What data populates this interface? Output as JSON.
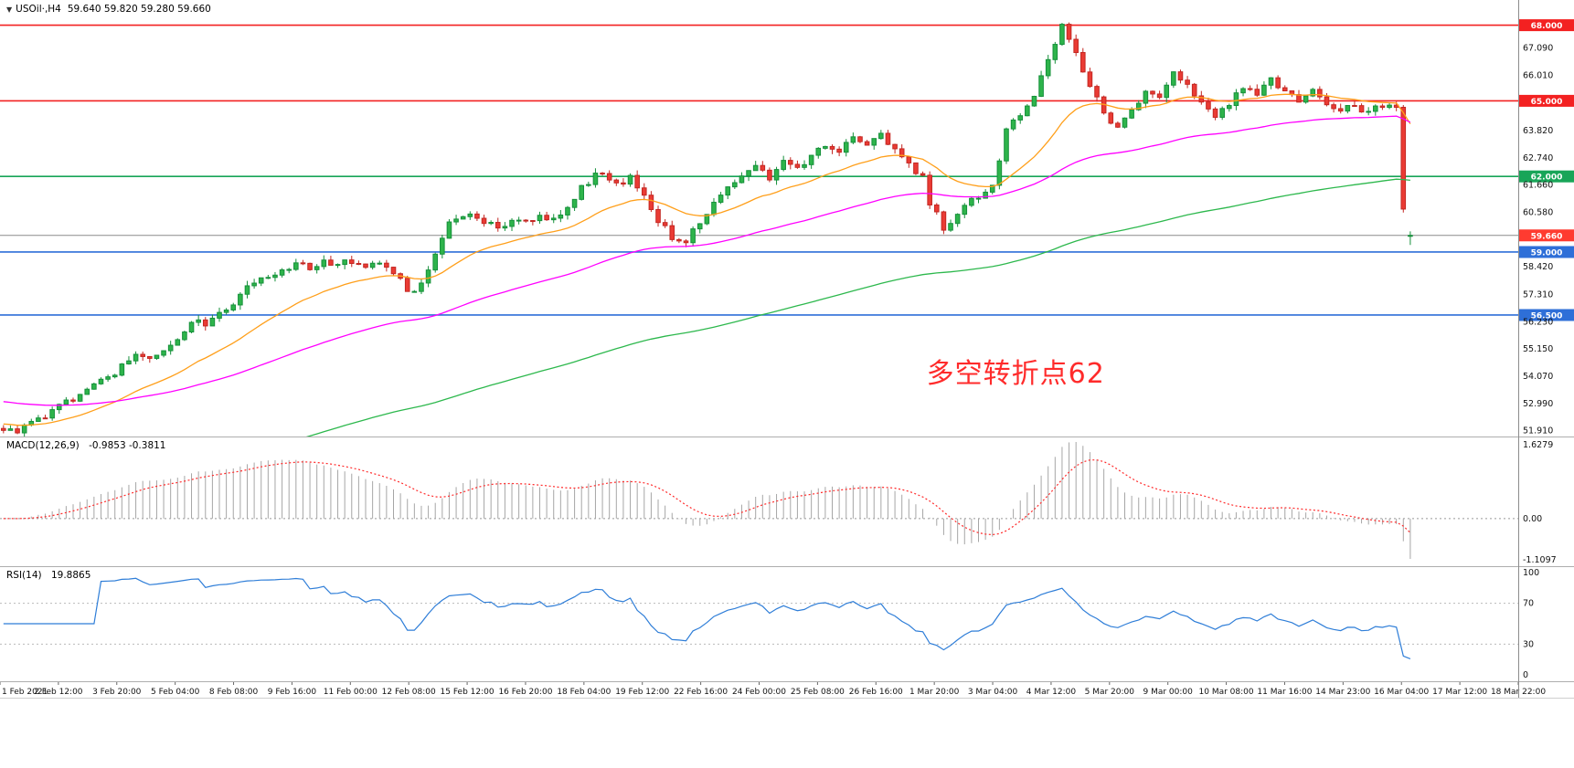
{
  "header": {
    "collapse_icon": "▼",
    "symbol_label": "USOil·,H4",
    "ohlc_text": "59.640 59.820 59.280 59.660"
  },
  "chart_data": {
    "type": "candlestick",
    "symbol": "USOil",
    "timeframe": "H4",
    "bar_count": 203,
    "right_shift_bars": 15,
    "y_range": [
      51.68,
      69.0
    ],
    "last_candle": {
      "o": 59.64,
      "h": 59.82,
      "l": 59.28,
      "c": 59.66
    },
    "noise": {
      "seed": 20210318,
      "close_amp": 0.16,
      "wick_amp": 0.2
    },
    "price_anchors": [
      [
        0,
        52.0
      ],
      [
        2,
        51.95
      ],
      [
        5,
        52.4
      ],
      [
        8,
        52.9
      ],
      [
        11,
        53.4
      ],
      [
        14,
        53.8
      ],
      [
        17,
        54.4
      ],
      [
        19,
        54.9
      ],
      [
        21,
        54.7
      ],
      [
        24,
        55.4
      ],
      [
        27,
        56.2
      ],
      [
        29,
        56.1
      ],
      [
        31,
        56.6
      ],
      [
        33,
        57.0
      ],
      [
        35,
        57.6
      ],
      [
        37,
        58.0
      ],
      [
        40,
        58.3
      ],
      [
        42,
        58.5
      ],
      [
        44,
        58.35
      ],
      [
        46,
        58.7
      ],
      [
        48,
        58.5
      ],
      [
        50,
        58.6
      ],
      [
        52,
        58.4
      ],
      [
        54,
        58.55
      ],
      [
        56,
        58.1
      ],
      [
        58,
        57.5
      ],
      [
        59,
        57.4
      ],
      [
        61,
        58.4
      ],
      [
        63,
        59.7
      ],
      [
        65,
        60.4
      ],
      [
        67,
        60.6
      ],
      [
        69,
        60.15
      ],
      [
        71,
        59.95
      ],
      [
        73,
        60.3
      ],
      [
        75,
        60.1
      ],
      [
        77,
        60.45
      ],
      [
        79,
        60.25
      ],
      [
        81,
        60.9
      ],
      [
        83,
        61.5
      ],
      [
        85,
        62.0
      ],
      [
        86,
        62.15
      ],
      [
        88,
        61.6
      ],
      [
        90,
        61.95
      ],
      [
        92,
        61.2
      ],
      [
        94,
        60.3
      ],
      [
        96,
        59.55
      ],
      [
        98,
        59.4
      ],
      [
        100,
        60.2
      ],
      [
        102,
        61.0
      ],
      [
        104,
        61.6
      ],
      [
        106,
        61.95
      ],
      [
        108,
        62.3
      ],
      [
        110,
        62.0
      ],
      [
        112,
        62.55
      ],
      [
        114,
        62.25
      ],
      [
        116,
        62.9
      ],
      [
        118,
        63.3
      ],
      [
        120,
        62.95
      ],
      [
        122,
        63.5
      ],
      [
        124,
        63.15
      ],
      [
        126,
        63.65
      ],
      [
        128,
        63.1
      ],
      [
        130,
        62.5
      ],
      [
        132,
        61.9
      ],
      [
        133,
        61.0
      ],
      [
        135,
        59.9
      ],
      [
        137,
        60.6
      ],
      [
        139,
        61.2
      ],
      [
        141,
        61.35
      ],
      [
        142,
        61.5
      ],
      [
        144,
        63.9
      ],
      [
        146,
        64.4
      ],
      [
        148,
        65.3
      ],
      [
        149,
        66.1
      ],
      [
        151,
        67.3
      ],
      [
        152,
        67.9
      ],
      [
        154,
        66.8
      ],
      [
        156,
        65.6
      ],
      [
        158,
        64.4
      ],
      [
        160,
        63.8
      ],
      [
        162,
        64.6
      ],
      [
        164,
        65.3
      ],
      [
        166,
        65.0
      ],
      [
        168,
        66.0
      ],
      [
        170,
        65.6
      ],
      [
        172,
        64.9
      ],
      [
        174,
        64.4
      ],
      [
        176,
        64.9
      ],
      [
        178,
        65.5
      ],
      [
        180,
        65.2
      ],
      [
        182,
        65.9
      ],
      [
        184,
        65.4
      ],
      [
        186,
        65.0
      ],
      [
        188,
        65.3
      ],
      [
        190,
        64.9
      ],
      [
        192,
        64.55
      ],
      [
        194,
        64.9
      ],
      [
        196,
        64.5
      ],
      [
        198,
        64.8
      ],
      [
        200,
        64.6
      ],
      [
        201,
        60.6
      ],
      [
        202,
        59.66
      ]
    ],
    "candle_colors": {
      "up_fill": "#2eb44b",
      "up_stroke": "#15903a",
      "down_fill": "#ea3b34",
      "down_stroke": "#c32722"
    },
    "moving_averages": [
      {
        "name": "ma-fast-line",
        "period": 21,
        "color": "#ff9f1a",
        "seed": 52.2
      },
      {
        "name": "ma-medium-line",
        "period": 68,
        "color": "#ff00ff",
        "seed": 53.1
      },
      {
        "name": "ma-slow-line",
        "period": 160,
        "color": "#2db84d",
        "seed": 48.8
      }
    ],
    "levels": [
      {
        "value": 68.0,
        "color": "#f32121",
        "label": "68.000"
      },
      {
        "value": 65.0,
        "color": "#f32121",
        "label": "65.000"
      },
      {
        "value": 62.0,
        "color": "#18a558",
        "label": "62.000"
      },
      {
        "value": 59.0,
        "color": "#2e6fd8",
        "label": "59.000"
      },
      {
        "value": 56.5,
        "color": "#2e6fd8",
        "label": "56.500"
      }
    ],
    "current_price": {
      "value": 59.66,
      "label": "59.660",
      "line_color": "#8a8a8a",
      "tag_color": "#ff3b30"
    },
    "axis_ticks": [
      {
        "v": 68.0,
        "t": "68.000",
        "tag": "#f32121"
      },
      {
        "v": 67.09,
        "t": "67.090"
      },
      {
        "v": 66.01,
        "t": "66.010"
      },
      {
        "v": 65.0,
        "t": "65.000",
        "tag": "#f32121"
      },
      {
        "v": 63.82,
        "t": "63.820"
      },
      {
        "v": 62.74,
        "t": "62.740"
      },
      {
        "v": 62.0,
        "t": "62.000",
        "tag": "#18a558"
      },
      {
        "v": 61.66,
        "t": "61.660"
      },
      {
        "v": 60.58,
        "t": "60.580"
      },
      {
        "v": 59.66,
        "t": "59.660",
        "tag": "#ff3b30"
      },
      {
        "v": 59.0,
        "t": "59.000",
        "tag": "#2e6fd8"
      },
      {
        "v": 58.42,
        "t": "58.420"
      },
      {
        "v": 57.31,
        "t": "57.310"
      },
      {
        "v": 56.5,
        "t": "56.500",
        "tag": "#2e6fd8"
      },
      {
        "v": 56.23,
        "t": "56.230"
      },
      {
        "v": 55.15,
        "t": "55.150"
      },
      {
        "v": 54.07,
        "t": "54.070"
      },
      {
        "v": 52.99,
        "t": "52.990"
      },
      {
        "v": 51.91,
        "t": "51.910"
      }
    ],
    "annotation": {
      "text": "多空转折点62",
      "color": "#ff2b2b",
      "x_fraction": 0.669,
      "price": 54.3,
      "font_px": 30
    },
    "macd": {
      "name": "MACD(12,26,9)",
      "values_text": "-0.9853 -0.3811",
      "fast_period": 12,
      "slow_period": 26,
      "signal_period": 9,
      "axis_labels": {
        "max": "1.6279",
        "zero": "0.00",
        "min": "-1.1097"
      },
      "histogram_color": "#a6a6a6",
      "signal_color": "#ff2b2b"
    },
    "rsi": {
      "name": "RSI(14)",
      "value_text": "19.8865",
      "period": 14,
      "line_color": "#2f7ed8",
      "level_lines": [
        70,
        30
      ],
      "axis_labels": [
        "100",
        "70",
        "30",
        "0"
      ],
      "axis_values": [
        100,
        70,
        30,
        0
      ]
    },
    "time_axis": {
      "labels": [
        "1 Feb 2021",
        "2 Feb 12:00",
        "3 Feb 20:00",
        "5 Feb 04:00",
        "8 Feb 08:00",
        "9 Feb 16:00",
        "11 Feb 00:00",
        "12 Feb 08:00",
        "15 Feb 12:00",
        "16 Feb 20:00",
        "18 Feb 04:00",
        "19 Feb 12:00",
        "22 Feb 16:00",
        "24 Feb 00:00",
        "25 Feb 08:00",
        "26 Feb 16:00",
        "1 Mar 20:00",
        "3 Mar 04:00",
        "4 Mar 12:00",
        "5 Mar 20:00",
        "9 Mar 00:00",
        "10 Mar 08:00",
        "11 Mar 16:00",
        "14 Mar 23:00",
        "16 Mar 04:00",
        "17 Mar 12:00",
        "18 Mar 22:00"
      ]
    }
  }
}
